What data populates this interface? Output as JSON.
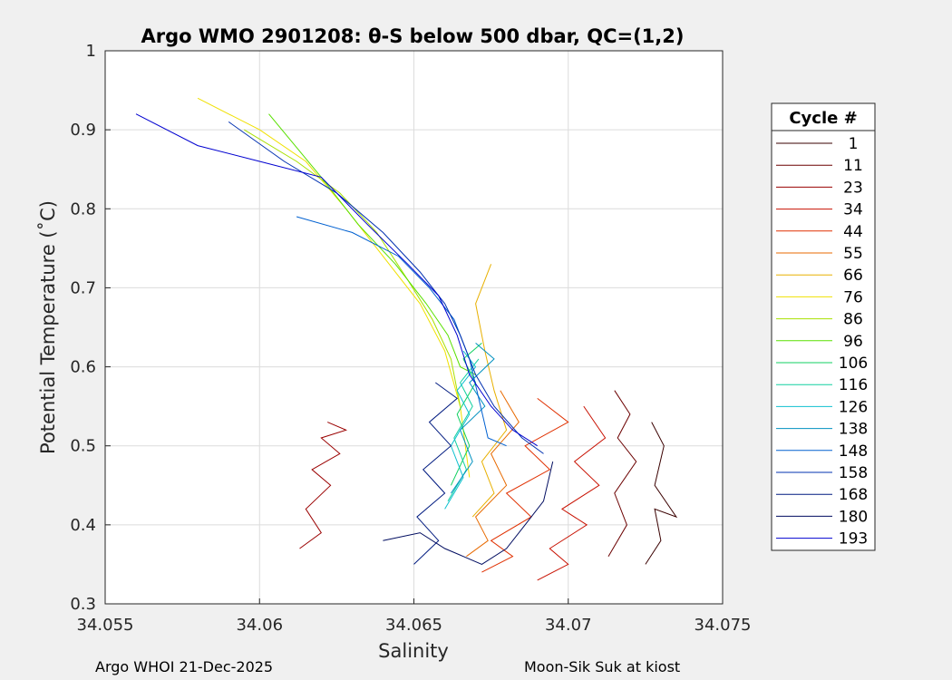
{
  "chart_data": {
    "type": "line",
    "title": "Argo WMO 2901208: θ-S below 500 dbar,  QC=(1,2)",
    "xlabel": "Salinity",
    "ylabel": "Potential Temperature (˚C)",
    "xlim": [
      34.055,
      34.075
    ],
    "ylim": [
      0.3,
      1.0
    ],
    "xticks": [
      "34.055",
      "34.06",
      "34.065",
      "34.07",
      "34.075"
    ],
    "yticks": [
      "0.3",
      "0.4",
      "0.5",
      "0.6",
      "0.7",
      "0.8",
      "0.9",
      "1"
    ],
    "grid": true,
    "legend": {
      "title": "Cycle #",
      "placement": "right",
      "entries": [
        {
          "label": "1",
          "color": "#3a0000"
        },
        {
          "label": "11",
          "color": "#6b0000"
        },
        {
          "label": "23",
          "color": "#9a0000"
        },
        {
          "label": "34",
          "color": "#c81000"
        },
        {
          "label": "44",
          "color": "#e03000"
        },
        {
          "label": "55",
          "color": "#e86a00"
        },
        {
          "label": "66",
          "color": "#e8b000"
        },
        {
          "label": "76",
          "color": "#f0e000"
        },
        {
          "label": "86",
          "color": "#a8e000"
        },
        {
          "label": "96",
          "color": "#58e000"
        },
        {
          "label": "106",
          "color": "#10d060"
        },
        {
          "label": "116",
          "color": "#10d0a0"
        },
        {
          "label": "126",
          "color": "#10c0d0"
        },
        {
          "label": "138",
          "color": "#0090c0"
        },
        {
          "label": "148",
          "color": "#0060d0"
        },
        {
          "label": "158",
          "color": "#0030b0"
        },
        {
          "label": "168",
          "color": "#001a80"
        },
        {
          "label": "180",
          "color": "#000c60"
        },
        {
          "label": "193",
          "color": "#0000d0"
        }
      ]
    },
    "series": [
      {
        "cycle": "1",
        "color": "#3a0000",
        "x": [
          34.0725,
          34.073,
          34.0728,
          34.0735,
          34.0728,
          34.0731,
          34.0727
        ],
        "y": [
          0.35,
          0.38,
          0.42,
          0.41,
          0.45,
          0.5,
          0.53
        ]
      },
      {
        "cycle": "11",
        "color": "#6b0000",
        "x": [
          34.0713,
          34.0719,
          34.0715,
          34.0722,
          34.0716,
          34.072,
          34.0715
        ],
        "y": [
          0.36,
          0.4,
          0.44,
          0.48,
          0.51,
          0.54,
          0.57
        ]
      },
      {
        "cycle": "23",
        "color": "#9a0000",
        "x": [
          34.0613,
          34.062,
          34.0615,
          34.0623,
          34.0617,
          34.0626,
          34.062,
          34.0628,
          34.0622
        ],
        "y": [
          0.37,
          0.39,
          0.42,
          0.45,
          0.47,
          0.49,
          0.51,
          0.52,
          0.53
        ]
      },
      {
        "cycle": "34",
        "color": "#c81000",
        "x": [
          34.069,
          34.07,
          34.0694,
          34.0706,
          34.0698,
          34.071,
          34.0702,
          34.0712,
          34.0705
        ],
        "y": [
          0.33,
          0.35,
          0.37,
          0.4,
          0.42,
          0.45,
          0.48,
          0.51,
          0.55
        ]
      },
      {
        "cycle": "44",
        "color": "#e03000",
        "x": [
          34.0672,
          34.0682,
          34.0675,
          34.0688,
          34.068,
          34.0694,
          34.0686,
          34.07,
          34.069
        ],
        "y": [
          0.34,
          0.36,
          0.38,
          0.41,
          0.44,
          0.47,
          0.5,
          0.53,
          0.56
        ]
      },
      {
        "cycle": "55",
        "color": "#e86a00",
        "x": [
          34.0667,
          34.0674,
          34.067,
          34.068,
          34.0675,
          34.0684,
          34.0678
        ],
        "y": [
          0.36,
          0.38,
          0.41,
          0.45,
          0.49,
          0.53,
          0.57
        ]
      },
      {
        "cycle": "66",
        "color": "#e8b000",
        "x": [
          34.0669,
          34.0676,
          34.0672,
          34.068,
          34.0676,
          34.0673,
          34.067,
          34.0675
        ],
        "y": [
          0.41,
          0.44,
          0.48,
          0.52,
          0.57,
          0.62,
          0.68,
          0.73
        ]
      },
      {
        "cycle": "76",
        "color": "#f0e000",
        "x": [
          34.058,
          34.06,
          34.0615,
          34.0628,
          34.064,
          34.0652,
          34.066,
          34.0665,
          34.0668
        ],
        "y": [
          0.94,
          0.9,
          0.86,
          0.8,
          0.74,
          0.68,
          0.62,
          0.55,
          0.46
        ]
      },
      {
        "cycle": "86",
        "color": "#a8e000",
        "x": [
          34.0595,
          34.0612,
          34.0626,
          34.0638,
          34.0648,
          34.0656,
          34.0662,
          34.0665
        ],
        "y": [
          0.9,
          0.86,
          0.82,
          0.77,
          0.71,
          0.66,
          0.61,
          0.55
        ]
      },
      {
        "cycle": "96",
        "color": "#58e000",
        "x": [
          34.0603,
          34.062,
          34.0632,
          34.0644,
          34.0654,
          34.0661,
          34.0665,
          34.067
        ],
        "y": [
          0.92,
          0.84,
          0.78,
          0.73,
          0.68,
          0.64,
          0.6,
          0.59
        ]
      },
      {
        "cycle": "106",
        "color": "#10d060",
        "x": [
          34.0662,
          34.0668,
          34.0664,
          34.067,
          34.0666,
          34.0672
        ],
        "y": [
          0.45,
          0.5,
          0.54,
          0.58,
          0.61,
          0.63
        ]
      },
      {
        "cycle": "116",
        "color": "#10d0a0",
        "x": [
          34.0661,
          34.0667,
          34.0663,
          34.0669,
          34.0665,
          34.0671
        ],
        "y": [
          0.43,
          0.47,
          0.51,
          0.55,
          0.58,
          0.61
        ]
      },
      {
        "cycle": "126",
        "color": "#10c0d0",
        "x": [
          34.066,
          34.0666,
          34.0662,
          34.0668,
          34.0664,
          34.067,
          34.0666
        ],
        "y": [
          0.42,
          0.46,
          0.5,
          0.54,
          0.57,
          0.6,
          0.62
        ]
      },
      {
        "cycle": "138",
        "color": "#0090c0",
        "x": [
          34.0662,
          34.0669,
          34.0665,
          34.0673,
          34.0668,
          34.0676,
          34.067
        ],
        "y": [
          0.44,
          0.48,
          0.52,
          0.55,
          0.58,
          0.61,
          0.63
        ]
      },
      {
        "cycle": "148",
        "color": "#0060d0",
        "x": [
          34.0612,
          34.063,
          34.0645,
          34.0655,
          34.0663,
          34.0668,
          34.0671,
          34.0674,
          34.068
        ],
        "y": [
          0.79,
          0.77,
          0.74,
          0.7,
          0.66,
          0.61,
          0.56,
          0.51,
          0.5
        ]
      },
      {
        "cycle": "158",
        "color": "#0030b0",
        "x": [
          34.059,
          34.0608,
          34.0625,
          34.064,
          34.0652,
          34.066,
          34.0665,
          34.067,
          34.0676,
          34.0685,
          34.0692
        ],
        "y": [
          0.91,
          0.86,
          0.82,
          0.77,
          0.72,
          0.68,
          0.64,
          0.59,
          0.55,
          0.51,
          0.49
        ]
      },
      {
        "cycle": "168",
        "color": "#001a80",
        "x": [
          34.065,
          34.0658,
          34.0651,
          34.066,
          34.0653,
          34.0662,
          34.0655,
          34.0664,
          34.0657
        ],
        "y": [
          0.35,
          0.38,
          0.41,
          0.44,
          0.47,
          0.5,
          0.53,
          0.56,
          0.58
        ]
      },
      {
        "cycle": "180",
        "color": "#000c60",
        "x": [
          34.064,
          34.0652,
          34.066,
          34.0666,
          34.0672,
          34.068,
          34.0686,
          34.0692,
          34.0695
        ],
        "y": [
          0.38,
          0.39,
          0.37,
          0.36,
          0.35,
          0.37,
          0.4,
          0.43,
          0.48
        ]
      },
      {
        "cycle": "193",
        "color": "#0000d0",
        "x": [
          34.056,
          34.058,
          34.06,
          34.062,
          34.0635,
          34.0648,
          34.0658,
          34.0664,
          34.0668,
          34.0675,
          34.0682,
          34.069
        ],
        "y": [
          0.92,
          0.88,
          0.86,
          0.84,
          0.78,
          0.73,
          0.69,
          0.64,
          0.59,
          0.55,
          0.52,
          0.5
        ]
      }
    ]
  },
  "footer": {
    "left": "Argo WHOI 21-Dec-2025",
    "right": "Moon-Sik Suk at kiost"
  }
}
